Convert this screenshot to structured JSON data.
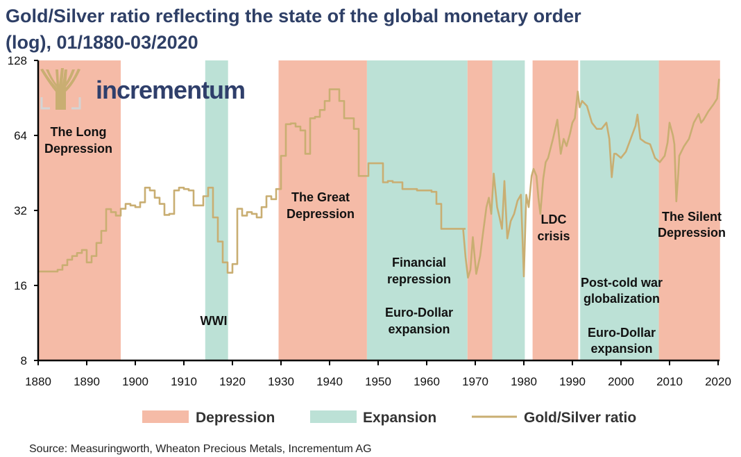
{
  "chart_data": {
    "type": "line",
    "title_lines": [
      "Gold/Silver ratio reflecting the state of the global monetary order",
      "(log), 01/1880-03/2020"
    ],
    "xlabel": "",
    "ylabel": "",
    "y_scale": "log2",
    "ylim": [
      8,
      128
    ],
    "xlim": [
      1880,
      2020
    ],
    "y_ticks": [
      8,
      16,
      32,
      64,
      128
    ],
    "x_ticks": [
      1880,
      1890,
      1900,
      1910,
      1920,
      1930,
      1940,
      1950,
      1960,
      1970,
      1980,
      1990,
      2000,
      2010,
      2020
    ],
    "grid": false,
    "legend_position": "bottom",
    "legend": [
      {
        "label": "Depression",
        "kind": "band",
        "color": "#f5bba7"
      },
      {
        "label": "Expansion",
        "kind": "band",
        "color": "#bce1d6"
      },
      {
        "label": "Gold/Silver ratio",
        "kind": "line",
        "color": "#c9ae72"
      }
    ],
    "bands": [
      {
        "type": "Depression",
        "start": 1880,
        "end": 1897
      },
      {
        "type": "Expansion",
        "start": 1914.4,
        "end": 1919.1
      },
      {
        "type": "Depression",
        "start": 1929.5,
        "end": 1947.7
      },
      {
        "type": "Expansion",
        "start": 1947.7,
        "end": 1968.4
      },
      {
        "type": "Depression",
        "start": 1968.4,
        "end": 1973.5
      },
      {
        "type": "Expansion",
        "start": 1973.5,
        "end": 1980.2
      },
      {
        "type": "Depression",
        "start": 1981.8,
        "end": 1991.2
      },
      {
        "type": "Expansion",
        "start": 1991.6,
        "end": 2007.8
      },
      {
        "type": "Depression",
        "start": 2007.8,
        "end": 2020.4
      }
    ],
    "series": [
      {
        "name": "Gold/Silver ratio",
        "step": true,
        "x": [
          1880,
          1884,
          1885,
          1886,
          1887,
          1888,
          1889,
          1890,
          1891,
          1892,
          1893,
          1894,
          1895,
          1896,
          1897,
          1898,
          1899,
          1900,
          1901,
          1902,
          1903,
          1904,
          1905,
          1906,
          1907,
          1908,
          1909,
          1910,
          1911,
          1912,
          1913,
          1914,
          1915,
          1916,
          1917,
          1918,
          1919,
          1920,
          1921,
          1922,
          1923,
          1924,
          1925,
          1926,
          1927,
          1928,
          1929,
          1930,
          1931,
          1932,
          1933,
          1934,
          1935,
          1936,
          1937,
          1938,
          1939,
          1940,
          1941,
          1942,
          1943,
          1944,
          1945,
          1946,
          1947,
          1948,
          1950,
          1951,
          1952,
          1953,
          1955,
          1958,
          1960,
          1961,
          1962,
          1963,
          1965,
          1967.5
        ],
        "values": [
          18.2,
          18.5,
          19.3,
          20.3,
          21,
          21.6,
          22.2,
          19.8,
          21,
          23.7,
          26.5,
          32.4,
          31.5,
          30.5,
          32.5,
          34,
          33.5,
          33,
          34.5,
          39.5,
          38.5,
          36,
          34,
          30.7,
          31,
          38.5,
          39.5,
          39,
          38.5,
          33.5,
          33.5,
          36.5,
          39.5,
          30,
          24,
          19.8,
          18,
          19.5,
          32.5,
          30.5,
          31.5,
          31,
          30,
          33,
          36.5,
          35.5,
          39,
          53,
          71,
          71.5,
          69.5,
          67,
          54,
          75,
          76,
          81,
          88,
          98,
          98,
          88,
          75,
          75,
          68,
          44,
          44,
          49.5,
          49.5,
          41.5,
          42,
          41.5,
          39,
          38.5,
          38.5,
          38,
          34,
          27,
          27,
          27
        ]
      },
      {
        "name": "Gold/Silver ratio",
        "step": false,
        "x": [
          1967.5,
          1968,
          1968.5,
          1969,
          1969.5,
          1970.2,
          1971,
          1971.6,
          1972.3,
          1972.8,
          1973.3,
          1973.8,
          1974.5,
          1975,
          1975.5,
          1976,
          1976.6,
          1977.3,
          1978,
          1978.7,
          1979.4,
          1980,
          1980.5,
          1981,
          1981.6,
          1982,
          1982.6,
          1983,
          1983.4,
          1984,
          1984.5,
          1985,
          1986,
          1986.9,
          1987.6,
          1988.2,
          1988.8,
          1989.5,
          1990,
          1990.5,
          1991.1,
          1991.5,
          1992,
          1993,
          1994,
          1995,
          1996,
          1997,
          1997.6,
          1998.1,
          1998.6,
          1999,
          2000,
          2001,
          2002,
          2003,
          2003.4,
          2004,
          2005,
          2006,
          2007,
          2008,
          2009,
          2009.6,
          2010,
          2010.7,
          2011,
          2011.4,
          2011.8,
          2012,
          2013,
          2014,
          2015,
          2016,
          2016.5,
          2017,
          2018,
          2019,
          2019.8,
          2020.2
        ],
        "values": [
          27,
          20.8,
          17.2,
          18.5,
          25,
          17.8,
          21,
          26,
          33,
          36,
          31,
          45,
          33,
          30,
          27,
          42,
          24.7,
          29,
          31,
          35,
          37,
          17.4,
          37,
          33,
          44,
          47,
          44,
          36,
          31,
          43,
          50,
          52,
          62,
          74,
          54,
          62,
          58,
          65,
          72,
          75,
          96,
          83,
          88,
          84,
          72,
          68,
          68,
          72,
          62,
          43.5,
          54,
          54,
          52,
          55,
          62,
          70,
          77.6,
          62,
          60,
          59,
          52,
          50,
          53,
          60,
          72,
          64,
          59,
          34.8,
          45,
          53,
          58,
          62,
          72,
          78,
          72,
          74,
          80,
          85,
          90,
          108
        ]
      }
    ],
    "annotations": [
      {
        "lines": [
          "The Long",
          "Depression"
        ]
      },
      {
        "lines": [
          "WWI"
        ]
      },
      {
        "lines": [
          "The Great",
          "Depression"
        ]
      },
      {
        "lines": [
          "Financial",
          "repression"
        ]
      },
      {
        "lines": [
          "Euro-Dollar",
          "expansion"
        ]
      },
      {
        "lines": [
          "LDC",
          "crisis"
        ]
      },
      {
        "lines": [
          "Post-cold war",
          "globalization"
        ]
      },
      {
        "lines": [
          "Euro-Dollar",
          "expansion"
        ]
      },
      {
        "lines": [
          "The Silent",
          "Depression"
        ]
      }
    ],
    "source": "Source: Measuringworth, Wheaton Precious Metals, Incrementum AG"
  },
  "logo": {
    "text": "incrementum",
    "icon": "tree-icon",
    "color": "#2f3f6b",
    "icon_color": "#c9ae72"
  }
}
